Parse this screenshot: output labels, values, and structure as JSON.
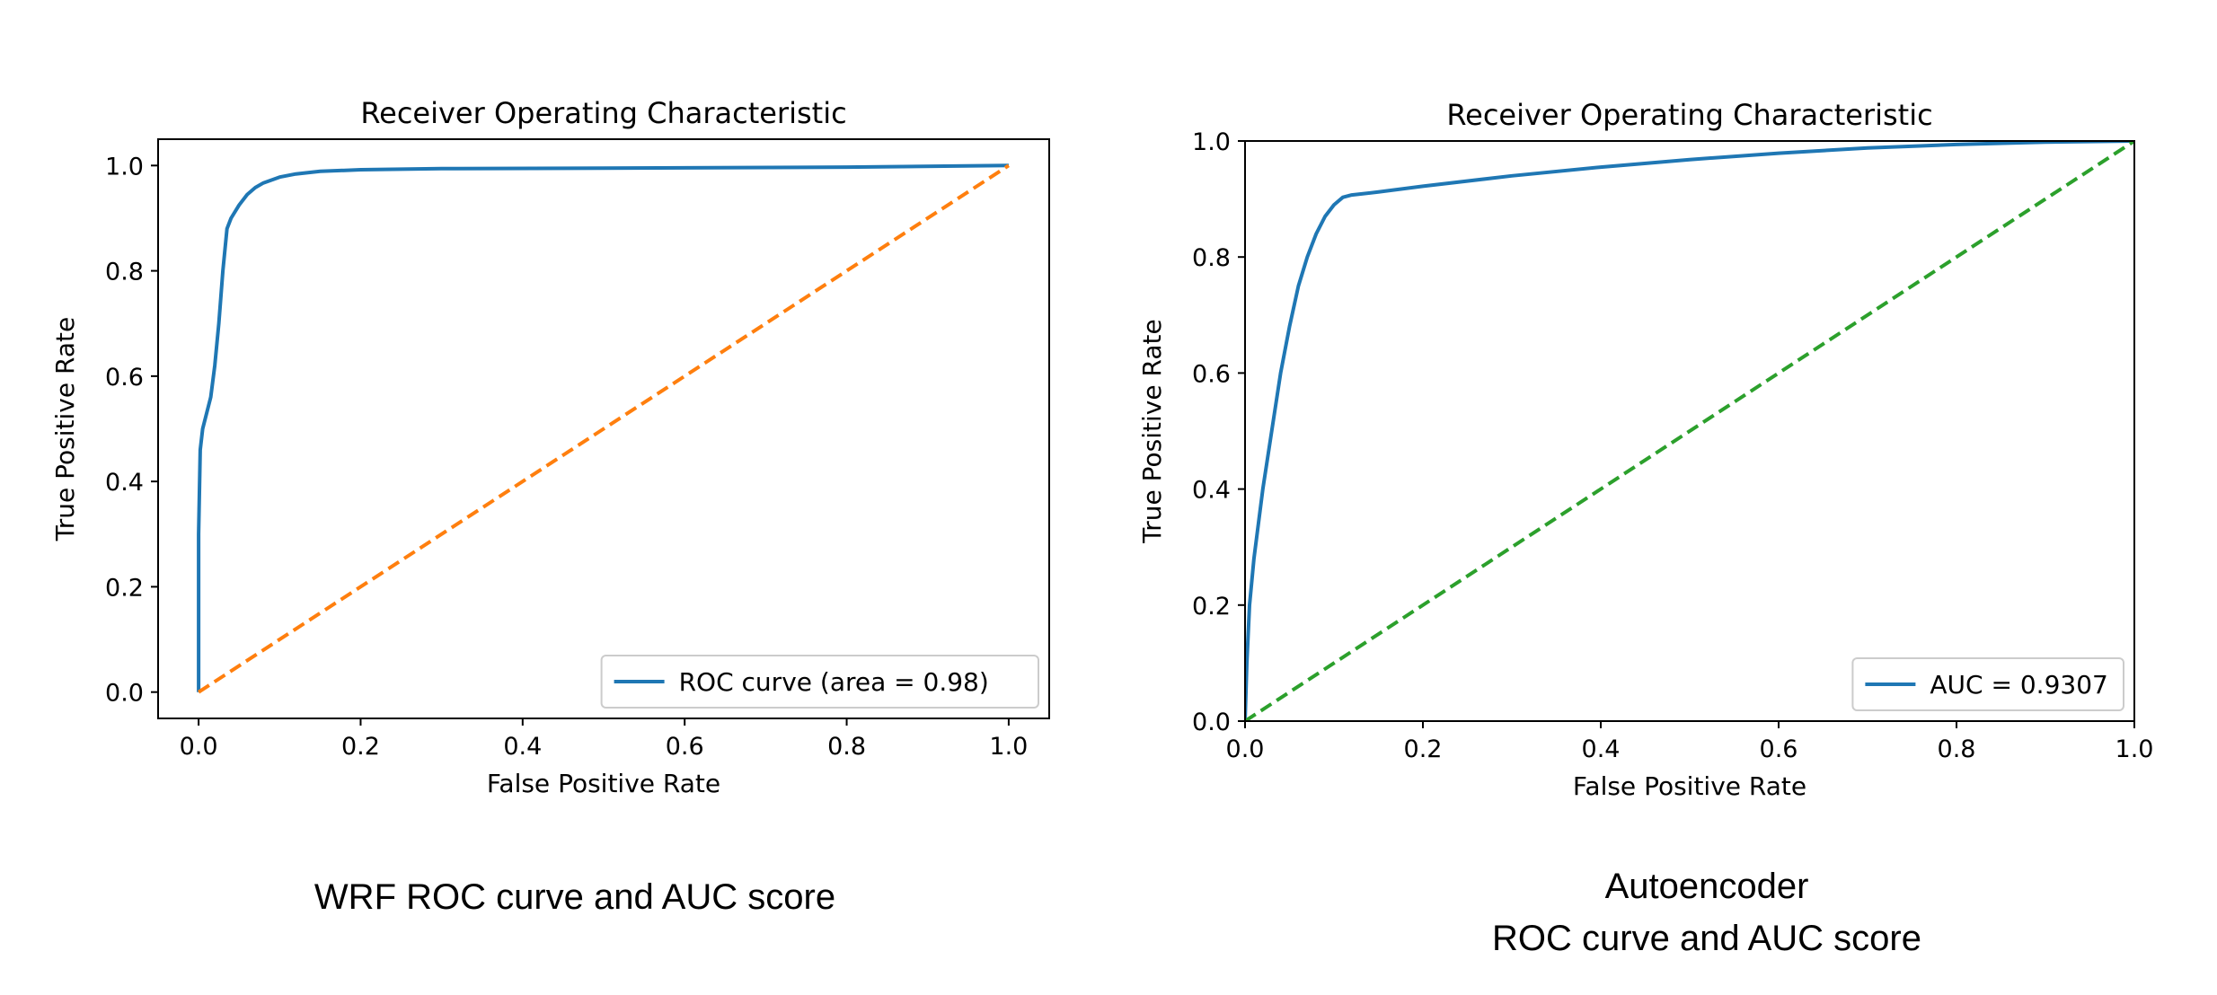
{
  "chart_data": [
    {
      "type": "line",
      "title": "Receiver Operating Characteristic",
      "xlabel": "False Positive Rate",
      "ylabel": "True Positive Rate",
      "xlim": [
        -0.05,
        1.05
      ],
      "ylim": [
        -0.05,
        1.05
      ],
      "xticks": [
        0.0,
        0.2,
        0.4,
        0.6,
        0.8,
        1.0
      ],
      "yticks": [
        0.0,
        0.2,
        0.4,
        0.6,
        0.8,
        1.0
      ],
      "xtick_labels": [
        "0.0",
        "0.2",
        "0.4",
        "0.6",
        "0.8",
        "1.0"
      ],
      "ytick_labels": [
        "0.0",
        "0.2",
        "0.4",
        "0.6",
        "0.8",
        "1.0"
      ],
      "grid": false,
      "legend": "lower right",
      "series": [
        {
          "name": "ROC curve (area = 0.98)",
          "color": "#1f77b4",
          "style": "solid",
          "x": [
            0.0,
            0.0,
            0.002,
            0.005,
            0.01,
            0.015,
            0.02,
            0.025,
            0.03,
            0.035,
            0.04,
            0.05,
            0.06,
            0.07,
            0.08,
            0.1,
            0.12,
            0.15,
            0.2,
            0.3,
            0.5,
            0.8,
            1.0
          ],
          "y": [
            0.0,
            0.3,
            0.46,
            0.5,
            0.53,
            0.56,
            0.62,
            0.7,
            0.8,
            0.88,
            0.9,
            0.925,
            0.945,
            0.958,
            0.967,
            0.978,
            0.984,
            0.989,
            0.992,
            0.994,
            0.995,
            0.997,
            1.0
          ]
        },
        {
          "name": "",
          "color": "#ff7f0e",
          "style": "dashed",
          "x": [
            0.0,
            1.0
          ],
          "y": [
            0.0,
            1.0
          ]
        }
      ]
    },
    {
      "type": "line",
      "title": "Receiver Operating Characteristic",
      "xlabel": "False Positive Rate",
      "ylabel": "True Positive Rate",
      "xlim": [
        0.0,
        1.0
      ],
      "ylim": [
        0.0,
        1.0
      ],
      "xticks": [
        0.0,
        0.2,
        0.4,
        0.6,
        0.8,
        1.0
      ],
      "yticks": [
        0.0,
        0.2,
        0.4,
        0.6,
        0.8,
        1.0
      ],
      "xtick_labels": [
        "0.0",
        "0.2",
        "0.4",
        "0.6",
        "0.8",
        "1.0"
      ],
      "ytick_labels": [
        "0.0",
        "0.2",
        "0.4",
        "0.6",
        "0.8",
        "1.0"
      ],
      "grid": false,
      "legend": "lower right",
      "series": [
        {
          "name": "AUC = 0.9307",
          "color": "#1f77b4",
          "style": "solid",
          "x": [
            0.0,
            0.002,
            0.005,
            0.01,
            0.02,
            0.03,
            0.04,
            0.05,
            0.06,
            0.07,
            0.08,
            0.09,
            0.1,
            0.11,
            0.12,
            0.15,
            0.2,
            0.3,
            0.4,
            0.5,
            0.6,
            0.7,
            0.8,
            0.9,
            1.0
          ],
          "y": [
            0.0,
            0.1,
            0.2,
            0.28,
            0.4,
            0.5,
            0.6,
            0.68,
            0.75,
            0.8,
            0.84,
            0.87,
            0.89,
            0.903,
            0.907,
            0.912,
            0.922,
            0.94,
            0.955,
            0.968,
            0.979,
            0.988,
            0.994,
            0.998,
            1.0
          ]
        },
        {
          "name": "",
          "color": "#2ca02c",
          "style": "dashed",
          "x": [
            0.0,
            1.0
          ],
          "y": [
            0.0,
            1.0
          ]
        }
      ]
    }
  ],
  "captions": {
    "left": "WRF ROC curve and AUC score",
    "right_line1": "Autoencoder",
    "right_line2": "ROC curve and AUC score"
  }
}
